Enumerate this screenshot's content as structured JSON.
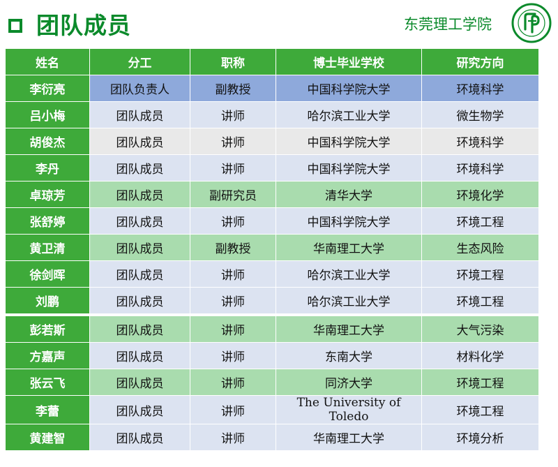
{
  "header": {
    "title": "团队成员",
    "school": "东莞理工学院"
  },
  "colors": {
    "accent": "#0b8a2b",
    "header_green": "#3eaa3a",
    "row_blue": "#8ea9db",
    "row_light": "#dce3f1",
    "row_green": "#a9dcae",
    "row_gray": "#e9e9e9"
  },
  "table": {
    "columns": [
      "姓名",
      "分工",
      "职称",
      "博士毕业学校",
      "研究方向"
    ],
    "rows": [
      {
        "name": "李衍亮",
        "role": "团队负责人",
        "title": "副教授",
        "school": "中国科学院大学",
        "field": "环境科学"
      },
      {
        "name": "吕小梅",
        "role": "团队成员",
        "title": "讲师",
        "school": "哈尔滨工业大学",
        "field": "微生物学"
      },
      {
        "name": "胡俊杰",
        "role": "团队成员",
        "title": "讲师",
        "school": "中国科学院大学",
        "field": "环境科学"
      },
      {
        "name": "李丹",
        "role": "团队成员",
        "title": "讲师",
        "school": "中国科学院大学",
        "field": "环境科学"
      },
      {
        "name": "卓琼芳",
        "role": "团队成员",
        "title": "副研究员",
        "school": "清华大学",
        "field": "环境化学"
      },
      {
        "name": "张舒婷",
        "role": "团队成员",
        "title": "讲师",
        "school": "中国科学院大学",
        "field": "环境工程"
      },
      {
        "name": "黄卫清",
        "role": "团队成员",
        "title": "副教授",
        "school": "华南理工大学",
        "field": "生态风险"
      },
      {
        "name": "徐剑晖",
        "role": "团队成员",
        "title": "讲师",
        "school": "哈尔滨工业大学",
        "field": "环境工程"
      },
      {
        "name": "刘鹏",
        "role": "团队成员",
        "title": "讲师",
        "school": "哈尔滨工业大学",
        "field": "环境工程"
      },
      {
        "name": "彭若斯",
        "role": "团队成员",
        "title": "讲师",
        "school": "华南理工大学",
        "field": "大气污染"
      },
      {
        "name": "方嘉声",
        "role": "团队成员",
        "title": "讲师",
        "school": "东南大学",
        "field": "材料化学"
      },
      {
        "name": "张云飞",
        "role": "团队成员",
        "title": "讲师",
        "school": "同济大学",
        "field": "环境工程"
      },
      {
        "name": "李蕾",
        "role": "团队成员",
        "title": "讲师",
        "school": "The University of Toledo",
        "field": "环境工程"
      },
      {
        "name": "黄建智",
        "role": "团队成员",
        "title": "讲师",
        "school": "华南理工大学",
        "field": "环境分析"
      }
    ]
  }
}
